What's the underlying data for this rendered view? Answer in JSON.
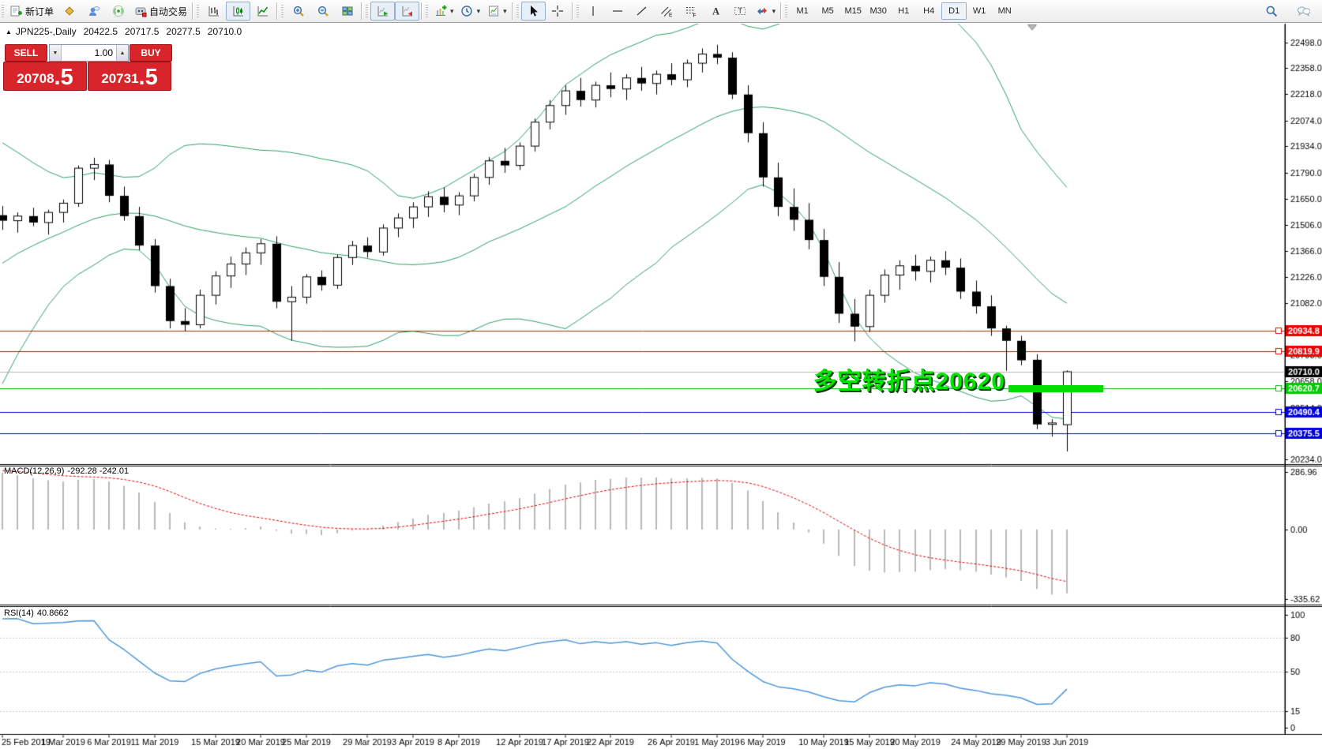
{
  "toolbar": {
    "groups": [
      {
        "items": [
          {
            "name": "new-order-button",
            "icon": "new-order",
            "label": "新订单"
          },
          {
            "name": "community-button",
            "icon": "tag"
          },
          {
            "name": "user-account-button",
            "icon": "user-cloud"
          },
          {
            "name": "signals-button",
            "icon": "signals"
          },
          {
            "name": "autotrading-button",
            "icon": "autotrading",
            "label": "自动交易"
          }
        ]
      },
      {
        "items": [
          {
            "name": "bar-chart-button",
            "icon": "chart-bars"
          },
          {
            "name": "candle-chart-button",
            "icon": "chart-candles",
            "pressed": true
          },
          {
            "name": "line-chart-button",
            "icon": "chart-line"
          }
        ]
      },
      {
        "items": [
          {
            "name": "zoom-in-button",
            "icon": "zoom-in"
          },
          {
            "name": "zoom-out-button",
            "icon": "zoom-out"
          },
          {
            "name": "tile-windows-button",
            "icon": "tile-windows"
          }
        ]
      },
      {
        "items": [
          {
            "name": "auto-scroll-button",
            "icon": "auto-scroll",
            "pressed": true
          },
          {
            "name": "chart-shift-button",
            "icon": "chart-shift",
            "pressed": true
          }
        ]
      },
      {
        "items": [
          {
            "name": "indicators-button",
            "icon": "indicators",
            "caret": true
          },
          {
            "name": "periods-button",
            "icon": "clock",
            "caret": true
          },
          {
            "name": "templates-button",
            "icon": "template",
            "caret": true
          }
        ]
      },
      {
        "items": [
          {
            "name": "cursor-button",
            "icon": "cursor",
            "pressed": true
          },
          {
            "name": "crosshair-button",
            "icon": "crosshair"
          }
        ]
      },
      {
        "items": [
          {
            "name": "vertical-line-button",
            "icon": "vline"
          },
          {
            "name": "horizontal-line-button",
            "icon": "hline"
          },
          {
            "name": "trendline-button",
            "icon": "trendline"
          },
          {
            "name": "channel-button",
            "icon": "channel"
          },
          {
            "name": "fibonacci-button",
            "icon": "fibonacci"
          },
          {
            "name": "text-button",
            "icon": "text"
          },
          {
            "name": "text-label-button",
            "icon": "text-label"
          },
          {
            "name": "arrows-button",
            "icon": "arrows",
            "caret": true
          }
        ]
      }
    ],
    "timeframes": {
      "items": [
        "M1",
        "M5",
        "M15",
        "M30",
        "H1",
        "H4",
        "D1",
        "W1",
        "MN"
      ],
      "active": "D1"
    },
    "right_items": [
      {
        "name": "search-button",
        "icon": "magnifier"
      },
      {
        "name": "chat-button",
        "icon": "chat"
      }
    ]
  },
  "window": {
    "collapse_glyph": "▲",
    "symbol_title": "JPN225-,Daily",
    "open": "20422.5",
    "high": "20717.5",
    "low": "20277.5",
    "close": "20710.0"
  },
  "trade_panel": {
    "sell_label": "SELL",
    "buy_label": "BUY",
    "volume": "1.00",
    "sell_price_main": "20708",
    "sell_price_frac": ".5",
    "buy_price_main": "20731",
    "buy_price_frac": ".5",
    "panel_color": "#d8242b"
  },
  "chart_data": {
    "type": "candlestick",
    "symbol": "JPN225-",
    "timeframe": "Daily",
    "colors": {
      "candle_up": "#ffffff",
      "candle_down": "#000000",
      "bollinger": "#2f9e68",
      "macd_histogram": "#b8b8b8",
      "macd_signal": "#e60000",
      "rsi_line": "#4b96d9",
      "grid_dashed": "#c8c8c8",
      "current_price_line": "#b4b4b4"
    },
    "candles": [
      [
        21560,
        21610,
        21480,
        21530
      ],
      [
        21530,
        21575,
        21465,
        21555
      ],
      [
        21555,
        21600,
        21500,
        21520
      ],
      [
        21520,
        21590,
        21455,
        21575
      ],
      [
        21575,
        21645,
        21520,
        21625
      ],
      [
        21625,
        21830,
        21605,
        21815
      ],
      [
        21815,
        21872,
        21750,
        21835
      ],
      [
        21835,
        21860,
        21630,
        21665
      ],
      [
        21665,
        21715,
        21530,
        21555
      ],
      [
        21555,
        21605,
        21370,
        21395
      ],
      [
        21395,
        21430,
        21140,
        21175
      ],
      [
        21175,
        21215,
        20945,
        20985
      ],
      [
        20985,
        21055,
        20930,
        20965
      ],
      [
        20965,
        21155,
        20945,
        21125
      ],
      [
        21125,
        21255,
        21075,
        21230
      ],
      [
        21230,
        21335,
        21165,
        21295
      ],
      [
        21295,
        21385,
        21235,
        21355
      ],
      [
        21355,
        21430,
        21290,
        21405
      ],
      [
        21405,
        21445,
        21055,
        21090
      ],
      [
        21090,
        21175,
        20878,
        21115
      ],
      [
        21115,
        21240,
        21080,
        21225
      ],
      [
        21225,
        21260,
        21150,
        21180
      ],
      [
        21180,
        21345,
        21160,
        21330
      ],
      [
        21330,
        21420,
        21290,
        21395
      ],
      [
        21395,
        21440,
        21330,
        21360
      ],
      [
        21360,
        21510,
        21340,
        21490
      ],
      [
        21490,
        21570,
        21440,
        21545
      ],
      [
        21545,
        21630,
        21490,
        21605
      ],
      [
        21605,
        21690,
        21550,
        21660
      ],
      [
        21660,
        21710,
        21575,
        21615
      ],
      [
        21615,
        21685,
        21560,
        21665
      ],
      [
        21665,
        21785,
        21635,
        21765
      ],
      [
        21765,
        21875,
        21725,
        21855
      ],
      [
        21855,
        21925,
        21790,
        21830
      ],
      [
        21830,
        21955,
        21805,
        21935
      ],
      [
        21935,
        22085,
        21905,
        22065
      ],
      [
        22065,
        22185,
        22025,
        22155
      ],
      [
        22155,
        22265,
        22105,
        22235
      ],
      [
        22235,
        22305,
        22150,
        22185
      ],
      [
        22185,
        22285,
        22145,
        22265
      ],
      [
        22265,
        22335,
        22200,
        22245
      ],
      [
        22245,
        22325,
        22185,
        22305
      ],
      [
        22305,
        22365,
        22235,
        22275
      ],
      [
        22275,
        22345,
        22215,
        22325
      ],
      [
        22325,
        22385,
        22265,
        22295
      ],
      [
        22295,
        22405,
        22255,
        22385
      ],
      [
        22385,
        22465,
        22335,
        22435
      ],
      [
        22435,
        22485,
        22380,
        22415
      ],
      [
        22415,
        22445,
        22190,
        22215
      ],
      [
        22215,
        22265,
        21955,
        22005
      ],
      [
        22005,
        22065,
        21715,
        21765
      ],
      [
        21765,
        21845,
        21555,
        21605
      ],
      [
        21605,
        21705,
        21475,
        21535
      ],
      [
        21535,
        21625,
        21375,
        21425
      ],
      [
        21425,
        21485,
        21175,
        21225
      ],
      [
        21225,
        21305,
        20975,
        21025
      ],
      [
        21025,
        21105,
        20875,
        20955
      ],
      [
        20955,
        21155,
        20925,
        21125
      ],
      [
        21125,
        21265,
        21085,
        21235
      ],
      [
        21235,
        21315,
        21155,
        21285
      ],
      [
        21285,
        21345,
        21205,
        21255
      ],
      [
        21255,
        21335,
        21195,
        21315
      ],
      [
        21315,
        21365,
        21235,
        21275
      ],
      [
        21275,
        21325,
        21105,
        21145
      ],
      [
        21145,
        21205,
        21025,
        21065
      ],
      [
        21065,
        21125,
        20905,
        20945
      ],
      [
        20945,
        20960,
        20715,
        20878
      ],
      [
        20878,
        20905,
        20745,
        20772
      ],
      [
        20775,
        20805,
        20398,
        20424
      ],
      [
        20424,
        20452,
        20358,
        20432
      ],
      [
        20422.5,
        20717.5,
        20277.5,
        20710.0
      ]
    ],
    "indicator_seed_closes": [
      20350,
      20500,
      20650,
      20800,
      20950,
      21050,
      21150,
      21250,
      21350,
      21420,
      21470,
      21500,
      21520,
      21530,
      21540,
      21550,
      21560,
      21560,
      21550,
      21545
    ],
    "date_ticks": [
      [
        0,
        "25 Feb 2019"
      ],
      [
        4,
        "1 Mar 2019"
      ],
      [
        7,
        "6 Mar 2019"
      ],
      [
        10,
        "11 Mar 2019"
      ],
      [
        14,
        "15 Mar 2019"
      ],
      [
        17,
        "20 Mar 2019"
      ],
      [
        20,
        "25 Mar 2019"
      ],
      [
        24,
        "29 Mar 2019"
      ],
      [
        27,
        "3 Apr 2019"
      ],
      [
        30,
        "8 Apr 2019"
      ],
      [
        34,
        "12 Apr 2019"
      ],
      [
        37,
        "17 Apr 2019"
      ],
      [
        40,
        "22 Apr 2019"
      ],
      [
        44,
        "26 Apr 2019"
      ],
      [
        47,
        "1 May 2019"
      ],
      [
        50,
        "6 May 2019"
      ],
      [
        54,
        "10 May 2019"
      ],
      [
        57,
        "15 May 2019"
      ],
      [
        60,
        "20 May 2019"
      ],
      [
        64,
        "24 May 2019"
      ],
      [
        67,
        "29 May 2019"
      ],
      [
        70,
        "3 Jun 2019"
      ]
    ],
    "price_ticks": [
      [
        22498,
        "22498.0"
      ],
      [
        22358,
        "22358.0"
      ],
      [
        22218,
        "22218.0"
      ],
      [
        22074,
        "22074.0"
      ],
      [
        21934,
        "21934.0"
      ],
      [
        21790,
        "21790.0"
      ],
      [
        21650,
        "21650.0"
      ],
      [
        21506,
        "21506.0"
      ],
      [
        21366,
        "21366.0"
      ],
      [
        21226,
        "21226.0"
      ],
      [
        21082,
        "21082.0"
      ],
      [
        20798,
        "20798.0"
      ],
      [
        20658,
        "20658.0"
      ],
      [
        20514,
        "20514.0"
      ],
      [
        20234,
        "20234.0"
      ]
    ],
    "hlines": [
      {
        "price": 20934.8,
        "label": "20934.8",
        "line": "#ee0000",
        "box": "#ee0000",
        "square": true
      },
      {
        "price": 20819.9,
        "label": "20819.9",
        "line": "#ee0000",
        "box": "#ee0000",
        "square": true
      },
      {
        "price": 20710.0,
        "label": "20710.0",
        "line": "#b4b4b4",
        "box": "#000000",
        "square": false
      },
      {
        "price": 20620.7,
        "label": "20620.7",
        "line": "#00b400",
        "box": "#00cc00",
        "square": true
      },
      {
        "price": 20490.4,
        "label": "20490.4",
        "line": "#0000e0",
        "box": "#0000e0",
        "square": true
      },
      {
        "price": 20375.5,
        "label": "20375.5",
        "line": "#0000e0",
        "box": "#0000e0",
        "square": true
      }
    ],
    "bollinger": {
      "period": 20,
      "deviation": 2
    },
    "macd": {
      "label": "MACD(12,26,9)",
      "values_text": "-292.28 -242.01",
      "fast": 12,
      "slow": 26,
      "signal": 9,
      "axis_labels": [
        [
          286.96,
          "286.96"
        ],
        [
          0,
          "0.00"
        ],
        [
          -335.62,
          "-335.62"
        ]
      ]
    },
    "rsi": {
      "label": "RSI(14)",
      "value_text": "40.8662",
      "period": 14,
      "axis_labels": [
        [
          100,
          "100"
        ],
        [
          80,
          "80"
        ],
        [
          50,
          "50"
        ],
        [
          15,
          "15"
        ],
        [
          0,
          "0"
        ]
      ],
      "gridlines": [
        80,
        50,
        15
      ]
    },
    "annotation": {
      "text": "多空转折点20620",
      "color": "#00e400"
    },
    "trend_segment": {
      "price": 20620,
      "color": "#00dd00"
    }
  }
}
